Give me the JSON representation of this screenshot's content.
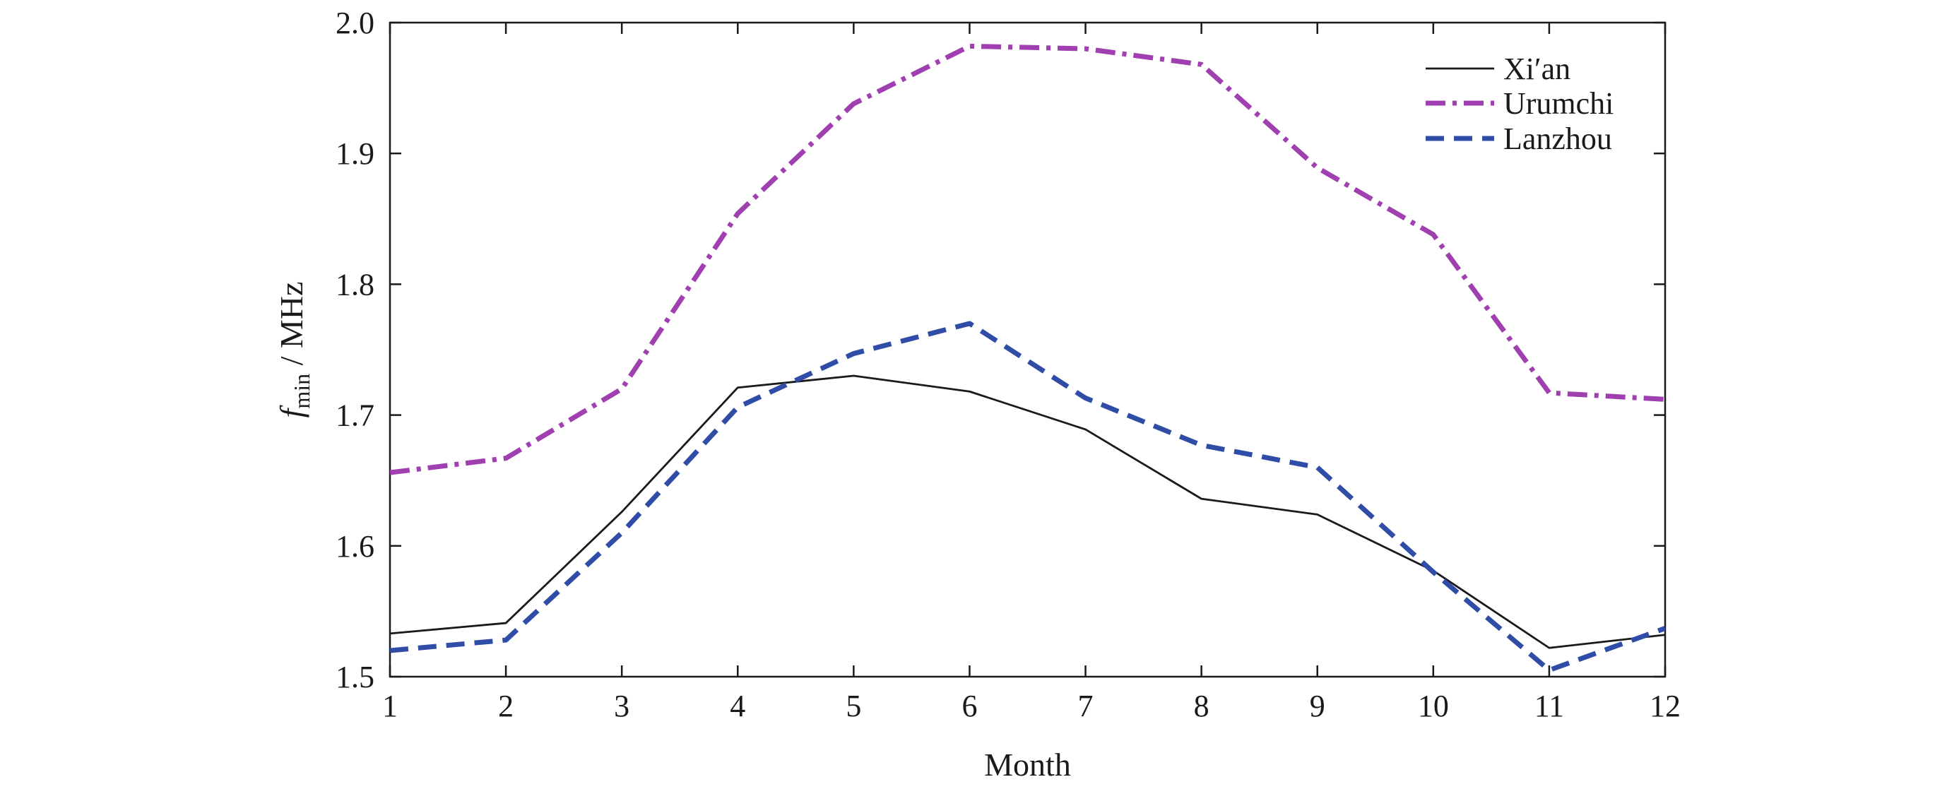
{
  "chart_data": {
    "type": "line",
    "x": [
      1,
      2,
      3,
      4,
      5,
      6,
      7,
      8,
      9,
      10,
      11,
      12
    ],
    "xlabel": "Month",
    "ylabel": {
      "main": "f",
      "subscript": "min",
      "unit": " / MHz"
    },
    "xlim": [
      1,
      12
    ],
    "ylim": [
      1.5,
      2.0
    ],
    "x_ticks": [
      "1",
      "2",
      "3",
      "4",
      "5",
      "6",
      "7",
      "8",
      "9",
      "10",
      "11",
      "12"
    ],
    "y_ticks": [
      "1.5",
      "1.6",
      "1.7",
      "1.8",
      "1.9",
      "2.0"
    ],
    "grid": false,
    "legend_position": "top-right",
    "series": [
      {
        "name": "Xi′an",
        "color": "#1a1a1a",
        "style": "solid",
        "values": [
          1.533,
          1.541,
          1.626,
          1.721,
          1.73,
          1.718,
          1.689,
          1.636,
          1.624,
          1.581,
          1.522,
          1.532
        ]
      },
      {
        "name": "Urumchi",
        "color": "#a040b0",
        "style": "dash-dot",
        "values": [
          1.656,
          1.667,
          1.72,
          1.854,
          1.938,
          1.982,
          1.98,
          1.968,
          1.889,
          1.838,
          1.717,
          1.712
        ]
      },
      {
        "name": "Lanzhou",
        "color": "#2f4da6",
        "style": "dashed",
        "values": [
          1.52,
          1.528,
          1.61,
          1.706,
          1.747,
          1.77,
          1.713,
          1.677,
          1.66,
          1.58,
          1.505,
          1.537
        ]
      }
    ]
  }
}
